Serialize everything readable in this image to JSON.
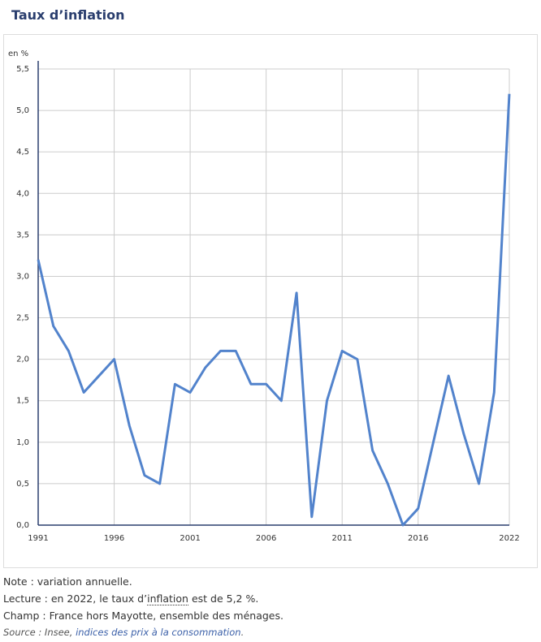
{
  "chart_data": {
    "type": "line",
    "title": "Taux d’inflation",
    "y_label": "en %",
    "x": [
      1991,
      1992,
      1993,
      1994,
      1995,
      1996,
      1997,
      1998,
      1999,
      2000,
      2001,
      2002,
      2003,
      2004,
      2005,
      2006,
      2007,
      2008,
      2009,
      2010,
      2011,
      2012,
      2013,
      2014,
      2015,
      2016,
      2017,
      2018,
      2019,
      2020,
      2021,
      2022
    ],
    "values": [
      3.2,
      2.4,
      2.1,
      1.6,
      1.8,
      2.0,
      1.2,
      0.6,
      0.5,
      1.7,
      1.6,
      1.9,
      2.1,
      2.1,
      1.7,
      1.7,
      1.5,
      2.8,
      0.1,
      1.5,
      2.1,
      2.0,
      0.9,
      0.5,
      0.0,
      0.2,
      1.0,
      1.8,
      1.1,
      0.5,
      1.6,
      5.2
    ],
    "color": "#5283cc",
    "xlim": [
      1991,
      2022
    ],
    "xticks": [
      1991,
      1996,
      2001,
      2006,
      2011,
      2016,
      2022
    ],
    "ylim": [
      0,
      5.5
    ],
    "yticks": [
      {
        "value": 0,
        "label": "0,0"
      },
      {
        "value": 0.5,
        "label": "0,5"
      },
      {
        "value": 1,
        "label": "1,0"
      },
      {
        "value": 1.5,
        "label": "1,5"
      },
      {
        "value": 2,
        "label": "2,0"
      },
      {
        "value": 2.5,
        "label": "2,5"
      },
      {
        "value": 3,
        "label": "3,0"
      },
      {
        "value": 3.5,
        "label": "3,5"
      },
      {
        "value": 4,
        "label": "4,0"
      },
      {
        "value": 4.5,
        "label": "4,5"
      },
      {
        "value": 5,
        "label": "5,0"
      },
      {
        "value": 5.5,
        "label": "5,5"
      }
    ],
    "grid": true
  },
  "notes": {
    "note": "Note : variation annuelle.",
    "reading": [
      "Lecture : en 2022, le taux d’",
      "inflation",
      " est de 5,2 %."
    ],
    "scope": "Champ : France hors Mayotte, ensemble des ménages.",
    "source": [
      "Source : Insee, ",
      "indices des prix à la consommation",
      "."
    ]
  }
}
